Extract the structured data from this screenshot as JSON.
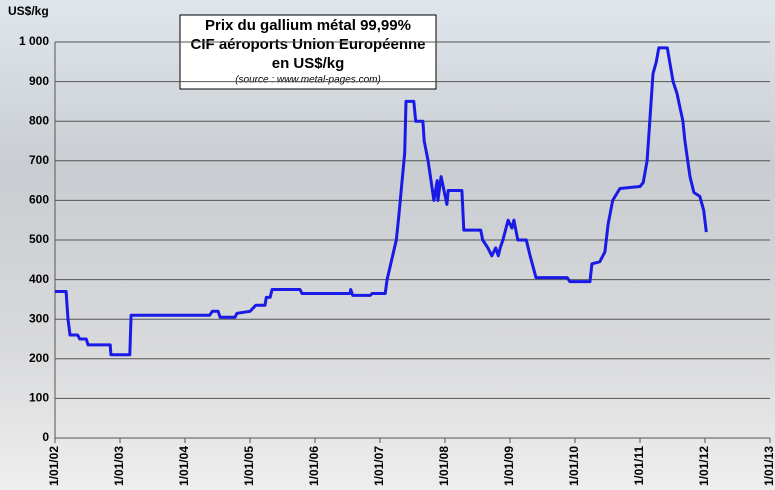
{
  "chart_data": {
    "type": "line",
    "title": [
      "Prix du gallium métal 99,99%",
      "CIF aéroports Union Européenne",
      "en US$/kg"
    ],
    "subtitle": "(source : www.metal-pages.com)",
    "y_label": "US$/kg",
    "x": [
      2002,
      2002.17,
      2002.2,
      2002.23,
      2002.35,
      2002.38,
      2002.48,
      2002.51,
      2002.85,
      2002.86,
      2003.15,
      2003.17,
      2004.38,
      2004.42,
      2004.51,
      2004.54,
      2004.77,
      2004.8,
      2005.0,
      2005.09,
      2005.23,
      2005.25,
      2005.31,
      2005.34,
      2005.77,
      2005.8,
      2006.54,
      2006.55,
      2006.58,
      2006.85,
      2006.88,
      2007.08,
      2007.11,
      2007.18,
      2007.25,
      2007.29,
      2007.34,
      2007.38,
      2007.4,
      2007.52,
      2007.55,
      2007.66,
      2007.68,
      2007.74,
      2007.83,
      2007.88,
      2007.89,
      2007.94,
      2008.03,
      2008.05,
      2008.26,
      2008.29,
      2008.55,
      2008.58,
      2008.66,
      2008.72,
      2008.78,
      2008.82,
      2008.85,
      2008.89,
      2008.97,
      2009.03,
      2009.06,
      2009.12,
      2009.25,
      2009.31,
      2009.4,
      2009.88,
      2009.92,
      2010.23,
      2010.26,
      2010.38,
      2010.46,
      2010.51,
      2010.58,
      2010.69,
      2011.0,
      2011.05,
      2011.11,
      2011.15,
      2011.2,
      2011.25,
      2011.29,
      2011.42,
      2011.51,
      2011.57,
      2011.66,
      2011.69,
      2011.77,
      2011.83,
      2011.92,
      2011.98,
      2012.02
    ],
    "series": [
      {
        "color": "#1a1ae6",
        "values": [
          370,
          370,
          300,
          260,
          260,
          250,
          250,
          235,
          235,
          210,
          210,
          310,
          310,
          320,
          320,
          305,
          305,
          315,
          320,
          335,
          335,
          355,
          355,
          375,
          375,
          365,
          365,
          375,
          360,
          360,
          365,
          365,
          400,
          450,
          500,
          560,
          650,
          720,
          850,
          850,
          800,
          800,
          750,
          700,
          600,
          650,
          600,
          660,
          590,
          625,
          625,
          525,
          525,
          500,
          480,
          460,
          480,
          460,
          480,
          500,
          550,
          530,
          550,
          500,
          500,
          460,
          405,
          405,
          395,
          395,
          440,
          445,
          470,
          540,
          600,
          630,
          635,
          645,
          700,
          800,
          920,
          950,
          985,
          985,
          900,
          870,
          800,
          750,
          660,
          620,
          610,
          575,
          520
        ]
      }
    ],
    "xlim": [
      2002,
      2013
    ],
    "xticks": [
      {
        "value": 2002,
        "label": "1/01/02"
      },
      {
        "value": 2003,
        "label": "1/01/03"
      },
      {
        "value": 2004,
        "label": "1/01/04"
      },
      {
        "value": 2005,
        "label": "1/01/05"
      },
      {
        "value": 2006,
        "label": "1/01/06"
      },
      {
        "value": 2007,
        "label": "1/01/07"
      },
      {
        "value": 2008,
        "label": "1/01/08"
      },
      {
        "value": 2009,
        "label": "1/01/09"
      },
      {
        "value": 2010,
        "label": "1/01/10"
      },
      {
        "value": 2011,
        "label": "1/01/11"
      },
      {
        "value": 2012,
        "label": "1/01/12"
      },
      {
        "value": 2013,
        "label": "1/01/13"
      }
    ],
    "ylim": [
      0,
      1000
    ],
    "yticks": [
      0,
      100,
      200,
      300,
      400,
      500,
      600,
      700,
      800,
      900,
      {
        "value": 1000,
        "label": "1 000"
      }
    ],
    "grid": true
  }
}
